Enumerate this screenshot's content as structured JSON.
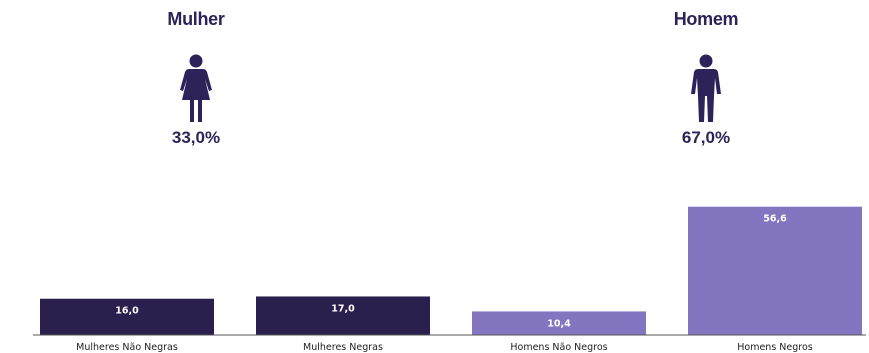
{
  "groups": [
    {
      "title": "Mulher",
      "percent": "33,0%",
      "icon": "woman-icon",
      "color": "#2d2358"
    },
    {
      "title": "Homem",
      "percent": "67,0%",
      "icon": "man-icon",
      "color": "#2d2358"
    }
  ],
  "chart_data": {
    "type": "bar",
    "categories": [
      "Mulheres Não Negras",
      "Mulheres Negras",
      "Homens Não Negros",
      "Homens Negros"
    ],
    "values": [
      16.0,
      17.0,
      10.4,
      56.6
    ],
    "value_labels": [
      "16,0",
      "17,0",
      "10,4",
      "56,6"
    ],
    "colors": [
      "#2b1f4d",
      "#2b1f4d",
      "#8475c0",
      "#8475c0"
    ],
    "ylim": [
      0,
      60
    ],
    "grid": false,
    "legend": "none"
  }
}
